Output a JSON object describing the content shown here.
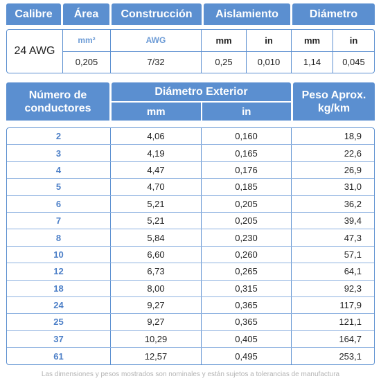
{
  "top_table": {
    "headers": [
      "Calibre",
      "Área",
      "Construcción",
      "Aislamiento",
      "Diámetro"
    ],
    "gauge": "24 AWG",
    "area": {
      "unit": "mm²",
      "value": "0,205"
    },
    "construccion": {
      "unit": "AWG",
      "value": "7/32"
    },
    "aislamiento": {
      "unit_mm": "mm",
      "unit_in": "in",
      "value_mm": "0,25",
      "value_in": "0,010"
    },
    "diametro": {
      "unit_mm": "mm",
      "unit_in": "in",
      "value_mm": "1,14",
      "value_in": "0,045"
    }
  },
  "main_table": {
    "header_conductores": [
      "Número de",
      "conductores"
    ],
    "header_diametro": "Diámetro Exterior",
    "header_mm": "mm",
    "header_in": "in",
    "header_peso": [
      "Peso Aprox.",
      "kg/km"
    ],
    "rows": [
      [
        "2",
        "4,06",
        "0,160",
        "18,9"
      ],
      [
        "3",
        "4,19",
        "0,165",
        "22,6"
      ],
      [
        "4",
        "4,47",
        "0,176",
        "26,9"
      ],
      [
        "5",
        "4,70",
        "0,185",
        "31,0"
      ],
      [
        "6",
        "5,21",
        "0,205",
        "36,2"
      ],
      [
        "7",
        "5,21",
        "0,205",
        "39,4"
      ],
      [
        "8",
        "5,84",
        "0,230",
        "47,3"
      ],
      [
        "10",
        "6,60",
        "0,260",
        "57,1"
      ],
      [
        "12",
        "6,73",
        "0,265",
        "64,1"
      ],
      [
        "18",
        "8,00",
        "0,315",
        "92,3"
      ],
      [
        "24",
        "9,27",
        "0,365",
        "117,9"
      ],
      [
        "25",
        "9,27",
        "0,365",
        "121,1"
      ],
      [
        "37",
        "10,29",
        "0,405",
        "164,7"
      ],
      [
        "61",
        "12,57",
        "0,495",
        "253,1"
      ]
    ]
  },
  "footnote": "Las dimensiones y pesos mostrados son nominales y están sujetos a tolerancias de manufactura",
  "colors": {
    "header_blue": "#5b8fd0",
    "accent_blue": "#4c7fc7"
  }
}
